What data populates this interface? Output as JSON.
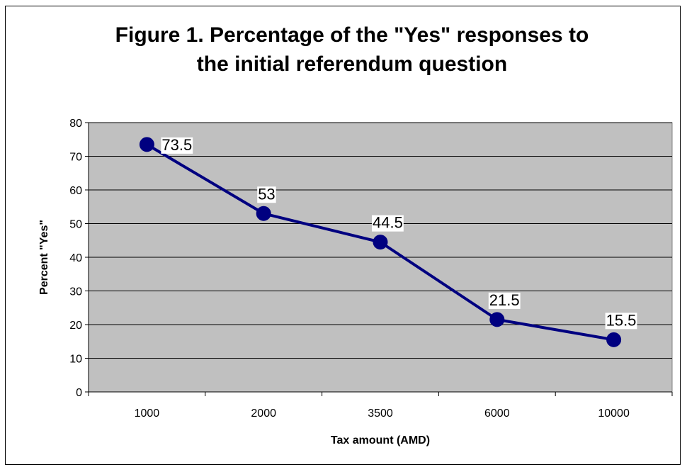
{
  "chart_data": {
    "type": "line",
    "title_lines": [
      "Figure 1. Percentage of the \"Yes\" responses to",
      "the initial referendum question"
    ],
    "categories": [
      "1000",
      "2000",
      "3500",
      "6000",
      "10000"
    ],
    "series": [
      {
        "values": [
          73.5,
          53,
          44.5,
          21.5,
          15.5
        ],
        "data_labels": [
          "73.5",
          "53",
          "44.5",
          "21.5",
          "15.5"
        ]
      }
    ],
    "xlabel": "Tax amount (AMD)",
    "ylabel": "Percent \"Yes\"",
    "ylim": [
      0,
      80
    ],
    "yticks": [
      "0",
      "10",
      "20",
      "30",
      "40",
      "50",
      "60",
      "70",
      "80"
    ],
    "grid": true,
    "legend": "none",
    "colors": {
      "plot_background": "#c0c0c0",
      "series": "#000080",
      "gridline": "#000000"
    }
  }
}
